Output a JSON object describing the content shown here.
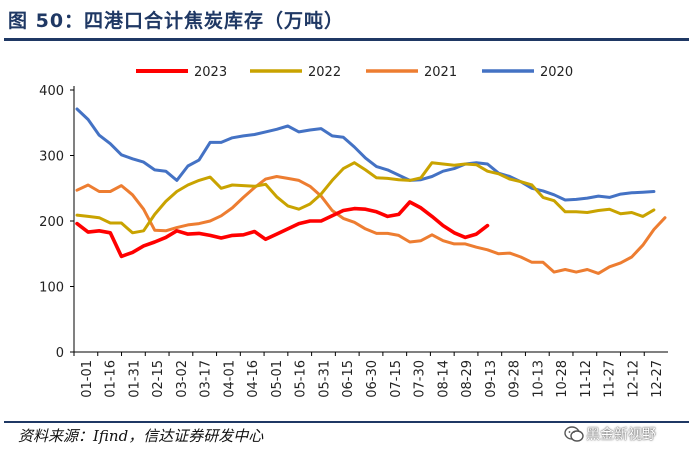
{
  "header": {
    "title": "图 50：四港口合计焦炭库存（万吨）"
  },
  "footer": {
    "source": "资料来源：Ifind，信达证券研发中心",
    "watermark": "黑金新视野"
  },
  "chart_data": {
    "type": "line",
    "title": "",
    "xlabel": "",
    "ylabel": "",
    "ylim": [
      0,
      400
    ],
    "yticks": [
      "0",
      "100",
      "200",
      "300",
      "400"
    ],
    "grid": false,
    "legend": "top",
    "x_labels": [
      "01-01",
      "01-16",
      "01-31",
      "02-15",
      "03-02",
      "03-17",
      "04-01",
      "04-16",
      "05-01",
      "05-16",
      "05-31",
      "06-15",
      "06-30",
      "07-15",
      "07-30",
      "08-14",
      "08-29",
      "09-13",
      "09-28",
      "10-13",
      "10-28",
      "11-12",
      "11-27",
      "12-12",
      "12-27"
    ],
    "series": [
      {
        "name": "2023",
        "color": "#ff0000",
        "values": [
          196,
          183,
          185,
          182,
          146,
          152,
          162,
          168,
          175,
          185,
          180,
          181,
          178,
          174,
          178,
          179,
          184,
          172,
          180,
          188,
          196,
          200,
          200,
          208,
          216,
          219,
          218,
          214,
          207,
          210,
          229,
          220,
          207,
          193,
          182,
          175,
          180,
          193
        ]
      },
      {
        "name": "2022",
        "color": "#c9a300",
        "values": [
          209,
          207,
          205,
          197,
          197,
          182,
          185,
          210,
          230,
          245,
          255,
          262,
          267,
          250,
          255,
          254,
          253,
          256,
          237,
          223,
          218,
          226,
          241,
          262,
          280,
          289,
          278,
          266,
          265,
          263,
          262,
          266,
          289,
          287,
          285,
          287,
          286,
          276,
          272,
          264,
          260,
          255,
          236,
          231,
          214,
          214,
          213,
          216,
          218,
          211,
          213,
          207,
          217
        ]
      },
      {
        "name": "2021",
        "color": "#ed7d31",
        "values": [
          247,
          255,
          245,
          245,
          254,
          240,
          218,
          186,
          185,
          190,
          194,
          196,
          200,
          208,
          220,
          236,
          251,
          264,
          268,
          265,
          262,
          253,
          238,
          216,
          204,
          198,
          188,
          181,
          181,
          178,
          168,
          170,
          179,
          170,
          165,
          165,
          160,
          156,
          150,
          151,
          145,
          137,
          137,
          122,
          126,
          122,
          126,
          120,
          130,
          136,
          145,
          163,
          187,
          205
        ]
      },
      {
        "name": "2020",
        "color": "#4472c4",
        "values": [
          371,
          355,
          331,
          318,
          301,
          295,
          290,
          278,
          276,
          262,
          284,
          293,
          320,
          320,
          327,
          330,
          332,
          336,
          340,
          345,
          336,
          339,
          341,
          330,
          328,
          313,
          296,
          283,
          278,
          270,
          262,
          263,
          268,
          276,
          280,
          287,
          289,
          287,
          273,
          268,
          260,
          250,
          246,
          240,
          232,
          233,
          235,
          238,
          236,
          241,
          243,
          244,
          245
        ]
      }
    ]
  }
}
